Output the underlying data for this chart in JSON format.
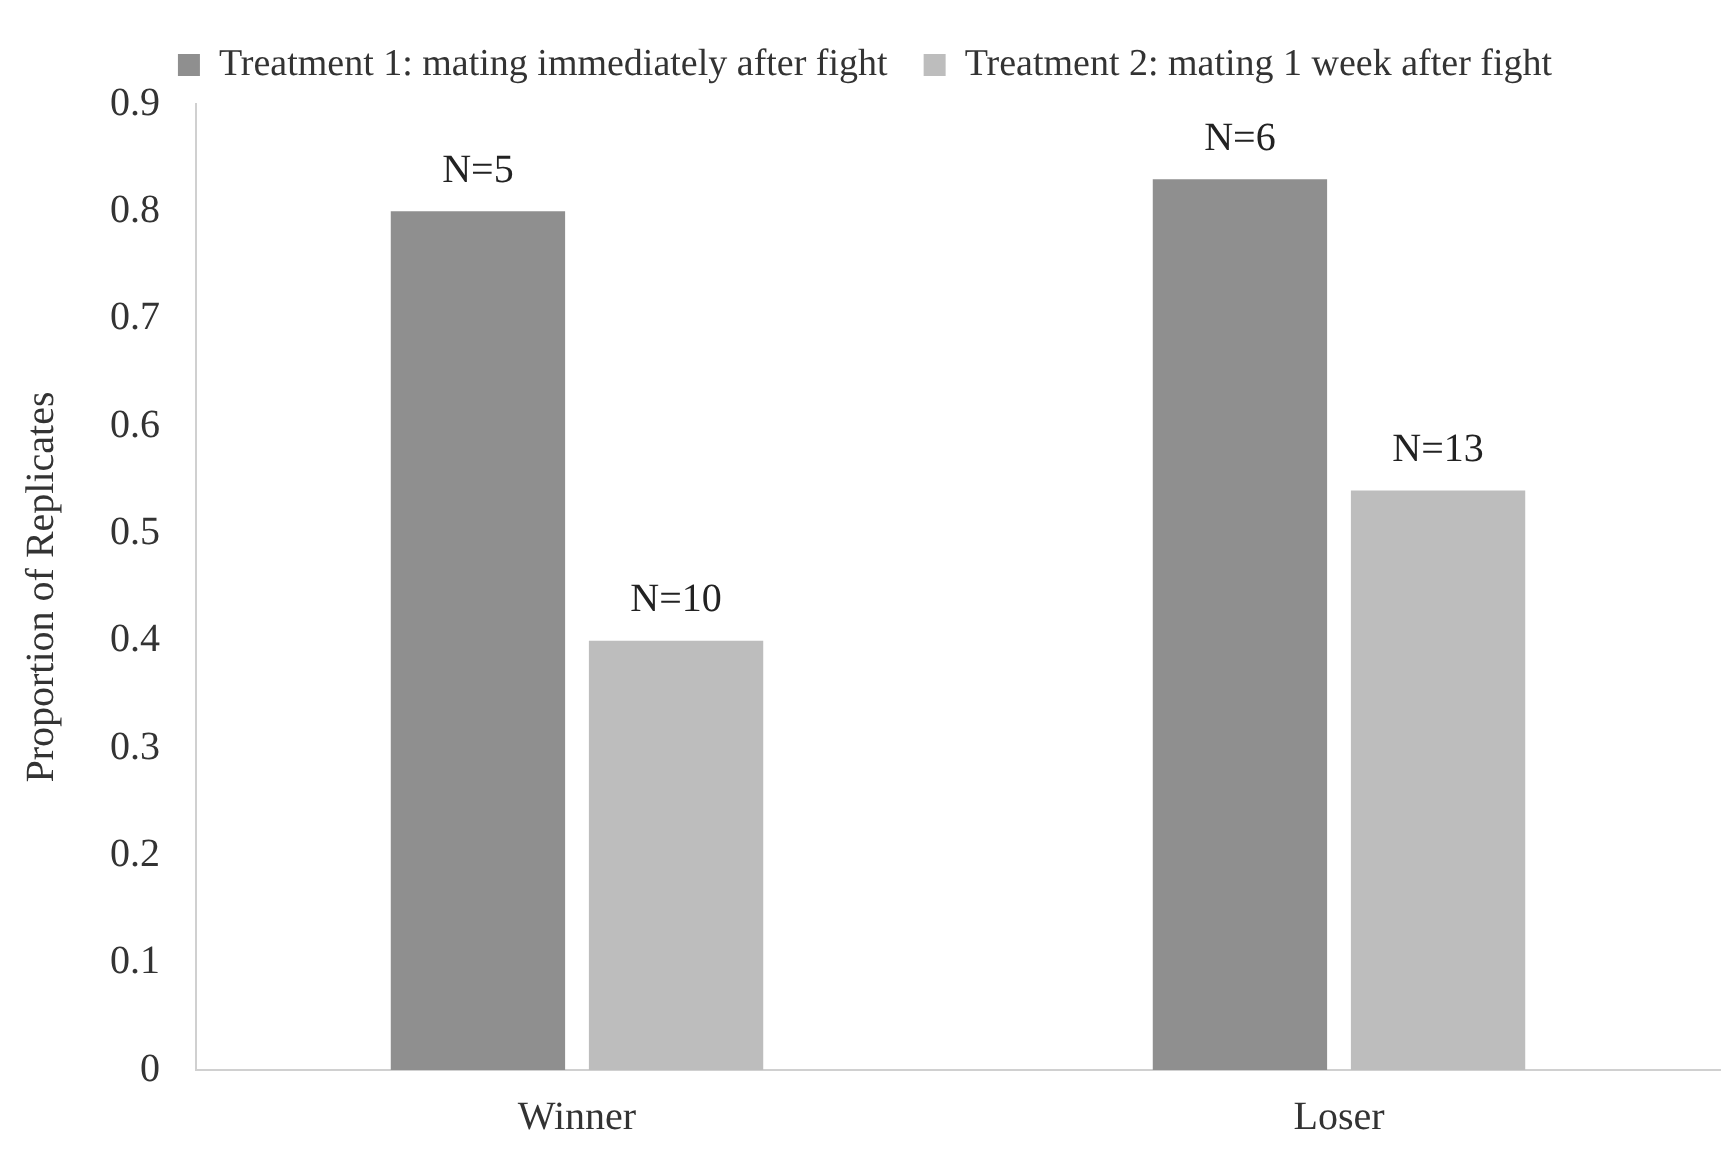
{
  "chart_data": {
    "type": "bar",
    "ylabel": "Proportion of Replicates",
    "categories": [
      "Winner",
      "Loser"
    ],
    "series": [
      {
        "name": "Treatment 1: mating immediately after fight",
        "color": "#8f8f8f",
        "values": [
          0.8,
          0.83
        ]
      },
      {
        "name": "Treatment 2: mating 1 week after fight",
        "color": "#bdbdbd",
        "values": [
          0.4,
          0.54
        ]
      }
    ],
    "annotations": [
      "N=5",
      "N=6",
      "N=10",
      "N=13"
    ],
    "ylim": [
      0,
      0.9
    ],
    "yticks": [
      0,
      0.1,
      0.2,
      0.3,
      0.4,
      0.5,
      0.6,
      0.7,
      0.8,
      0.9
    ],
    "grid": false,
    "legend": "top"
  }
}
